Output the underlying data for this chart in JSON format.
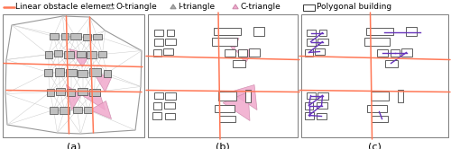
{
  "bg": "#FFFFFF",
  "red_color": "#FF7755",
  "purple_color": "#6633BB",
  "gray_edge": "#444444",
  "dark_edge": "#333333",
  "cdt_line": "#BBBBBB",
  "pink_face": "#F0A8CC",
  "pink_edge": "#CC88AA",
  "outer_edge": "#999999",
  "bld_face_a": "#BBBBBB",
  "legend_fs": 6.5,
  "label_fs": 8.0,
  "legend_items": [
    {
      "label": "Linear obstacle element",
      "color": "#FF7755"
    },
    {
      "label": "O-triangle",
      "face": "#FFFFFF",
      "edge": "#888888"
    },
    {
      "label": "I-triangle",
      "face": "#AAAAAA",
      "edge": "#888888"
    },
    {
      "label": "C-triangle",
      "face": "#F0A8CC",
      "edge": "#CC88AA"
    },
    {
      "label": "Polygonal building",
      "face": "#FFFFFF",
      "edge": "#333333"
    }
  ]
}
